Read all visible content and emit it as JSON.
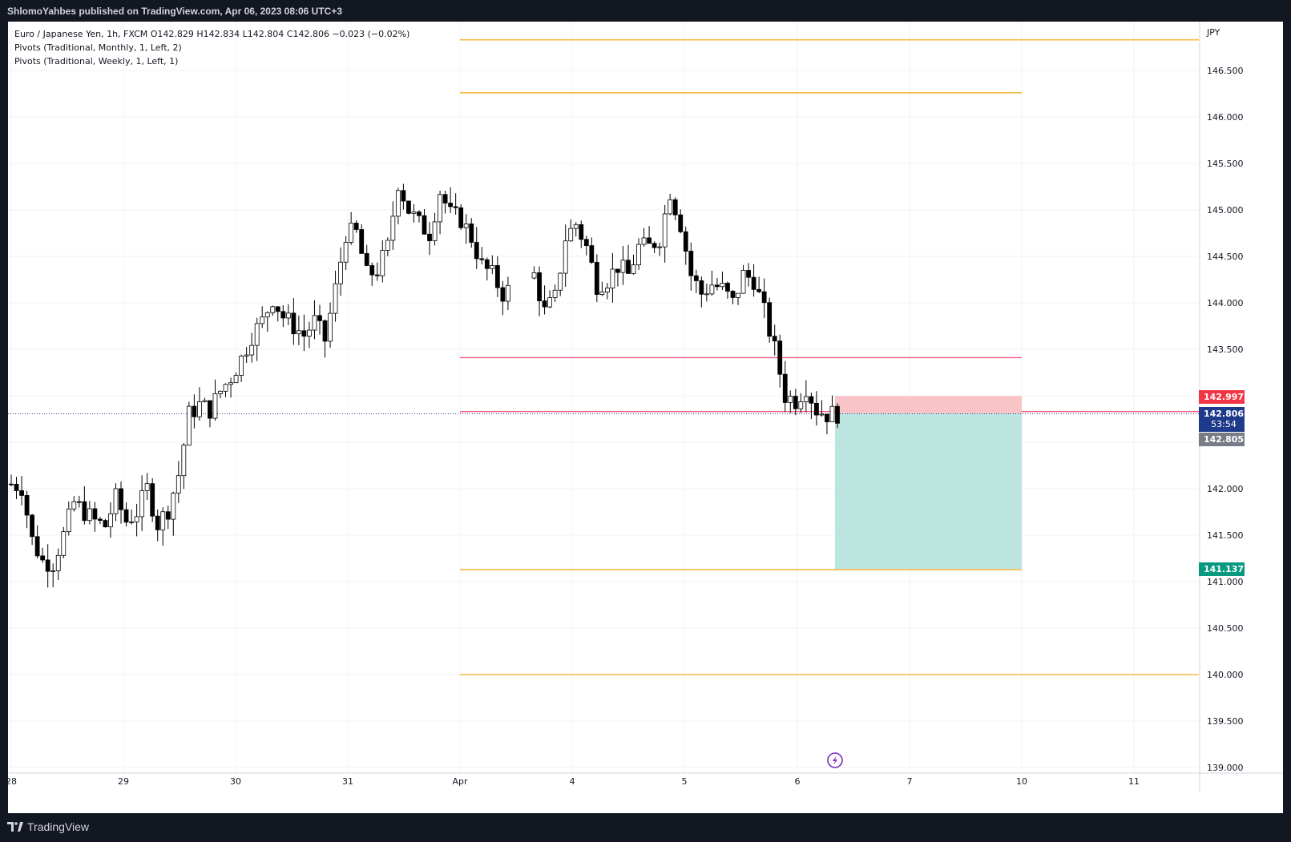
{
  "header": {
    "publisher_line": "ShlomoYahbes published on TradingView.com, Apr 06, 2023 08:06 UTC+3"
  },
  "legend": {
    "symbol_line": "Euro / Japanese Yen, 1h, FXCM  O142.829  H142.834  L142.804  C142.806  −0.023 (−0.02%)",
    "pivot_monthly": "Pivots (Traditional, Monthly, 1, Left, 2)",
    "pivot_weekly": "Pivots (Traditional, Weekly, 1, Left, 1)"
  },
  "footer": {
    "brand": "TradingView"
  },
  "chart_data": {
    "type": "candlestick",
    "symbol": "Euro / Japanese Yen, 1h, FXCM",
    "currency_label": "JPY",
    "ohlc_last": {
      "open": 142.829,
      "high": 142.834,
      "low": 142.804,
      "close": 142.806,
      "change": -0.023,
      "change_pct": -0.02
    },
    "ylim": [
      139.0,
      146.9
    ],
    "y_ticks": [
      "146.500",
      "146.000",
      "145.500",
      "145.000",
      "144.500",
      "144.000",
      "143.500",
      "143.000",
      "142.500",
      "142.000",
      "141.500",
      "141.000",
      "140.500",
      "140.000",
      "139.500",
      "139.000"
    ],
    "x_ticks": [
      "28",
      "29",
      "30",
      "31",
      "Apr",
      "4",
      "5",
      "6",
      "7",
      "10",
      "11"
    ],
    "pivot_levels_orange_full": [
      146.83,
      140.0
    ],
    "pivot_levels_orange_weekly": [
      146.26,
      141.13
    ],
    "pivot_levels_red": [
      143.41,
      142.83
    ],
    "position": {
      "type": "short",
      "entry": 142.81,
      "stop": 142.997,
      "target": 141.137
    },
    "price_labels": {
      "stop": "142.997",
      "current": "142.806",
      "countdown": "53:54",
      "bid": "142.805",
      "target": "141.137"
    },
    "candles_points": [
      [
        0,
        142.05
      ],
      [
        2,
        142.02
      ],
      [
        4,
        141.45
      ],
      [
        6,
        141.22
      ],
      [
        8,
        141.2
      ],
      [
        10,
        141.5
      ],
      [
        12,
        141.85
      ],
      [
        14,
        141.75
      ],
      [
        16,
        141.65
      ],
      [
        18,
        141.6
      ],
      [
        20,
        141.9
      ],
      [
        22,
        141.65
      ],
      [
        24,
        141.75
      ],
      [
        26,
        142.0
      ],
      [
        28,
        141.62
      ],
      [
        30,
        141.78
      ],
      [
        32,
        142.15
      ],
      [
        34,
        142.8
      ],
      [
        36,
        142.9
      ],
      [
        38,
        142.85
      ],
      [
        40,
        143.05
      ],
      [
        42,
        143.2
      ],
      [
        44,
        143.4
      ],
      [
        46,
        143.65
      ],
      [
        48,
        143.8
      ],
      [
        50,
        144.05
      ],
      [
        52,
        143.85
      ],
      [
        54,
        143.75
      ],
      [
        56,
        143.65
      ],
      [
        58,
        143.8
      ],
      [
        60,
        143.6
      ],
      [
        62,
        144.15
      ],
      [
        64,
        144.75
      ],
      [
        66,
        144.75
      ],
      [
        68,
        144.3
      ],
      [
        70,
        144.35
      ],
      [
        72,
        144.6
      ],
      [
        74,
        145.3
      ],
      [
        76,
        145.0
      ],
      [
        78,
        144.85
      ],
      [
        80,
        144.75
      ],
      [
        82,
        145.2
      ],
      [
        84,
        144.95
      ],
      [
        86,
        144.9
      ],
      [
        88,
        144.7
      ],
      [
        90,
        144.4
      ],
      [
        92,
        144.3
      ],
      [
        94,
        144.1
      ],
      [
        100,
        144.3
      ],
      [
        102,
        143.9
      ],
      [
        104,
        144.05
      ],
      [
        106,
        144.7
      ],
      [
        108,
        144.85
      ],
      [
        110,
        144.6
      ],
      [
        112,
        144.2
      ],
      [
        114,
        144.25
      ],
      [
        116,
        144.4
      ],
      [
        118,
        144.3
      ],
      [
        120,
        144.6
      ],
      [
        122,
        144.6
      ],
      [
        124,
        144.7
      ],
      [
        126,
        145.2
      ],
      [
        128,
        144.85
      ],
      [
        130,
        144.3
      ],
      [
        132,
        144.1
      ],
      [
        134,
        144.2
      ],
      [
        136,
        144.15
      ],
      [
        138,
        144.0
      ],
      [
        140,
        144.3
      ],
      [
        142,
        144.25
      ],
      [
        144,
        143.9
      ],
      [
        146,
        143.5
      ],
      [
        148,
        143.0
      ],
      [
        150,
        142.95
      ],
      [
        152,
        143.1
      ],
      [
        154,
        142.85
      ],
      [
        156,
        142.8
      ],
      [
        158,
        142.81
      ]
    ]
  }
}
